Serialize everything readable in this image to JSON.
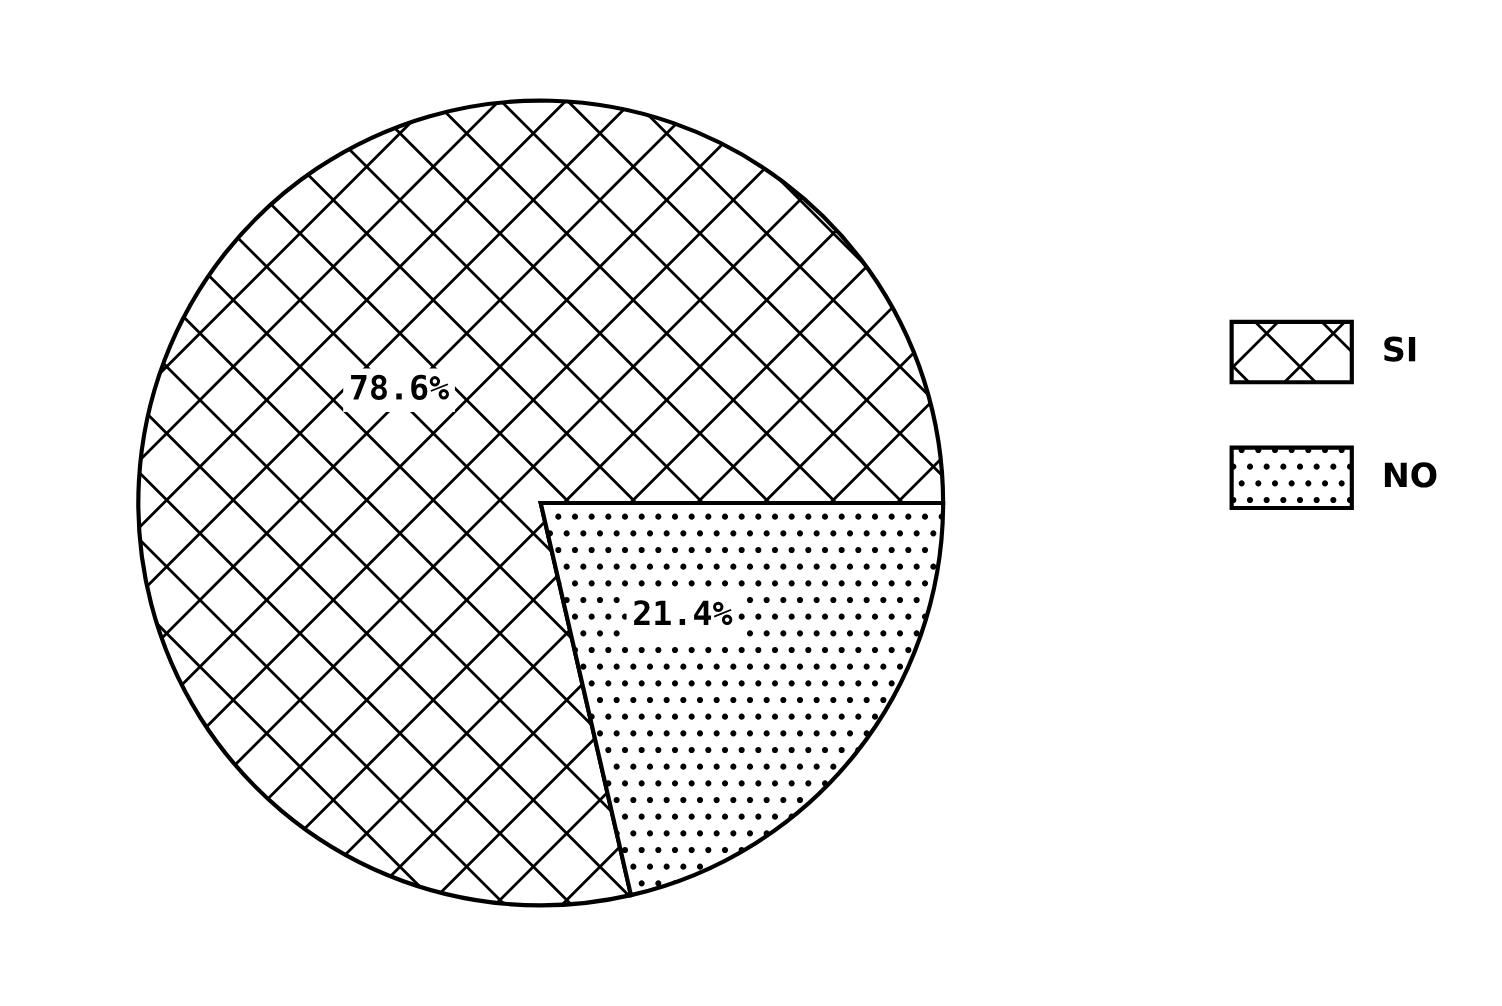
{
  "chart_data": {
    "type": "pie",
    "categories": [
      "SI",
      "NO"
    ],
    "values": [
      78.6,
      21.4
    ],
    "colors": [
      "#ffffff",
      "#ffffff"
    ],
    "value_labels": [
      "78.6%",
      "21.4%"
    ],
    "legend": "right"
  }
}
